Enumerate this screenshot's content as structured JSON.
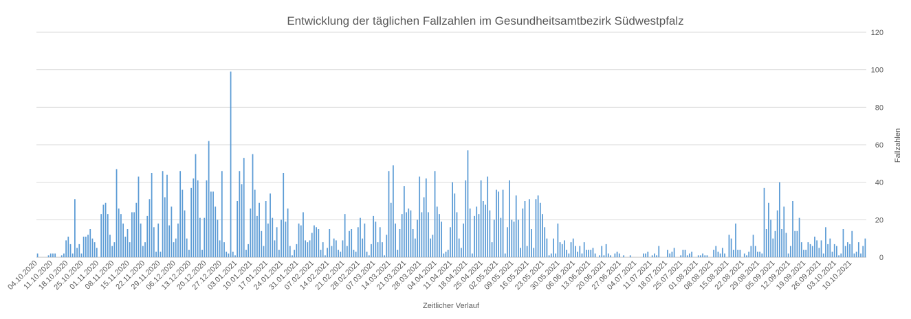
{
  "chart_data": {
    "type": "bar",
    "title": "Entwicklung der täglichen Fallzahlen im Gesundheitsamtbezirk Südwestpfalz",
    "xlabel": "Zeitlicher Verlauf",
    "ylabel": "Fallzahlen",
    "ylim": [
      0,
      120
    ],
    "yticks": [
      0,
      20,
      40,
      60,
      80,
      100,
      120
    ],
    "y_axis_side": "right",
    "grid": true,
    "bar_color": "#5b9bd5",
    "x_tick_labels": [
      "04.10.2020",
      "11.10.2020",
      "18.10.2020",
      "25.10.2020",
      "01.11.2020",
      "08.11.2020",
      "15.11.2020",
      "22.11.2020",
      "29.11.2020",
      "06.12.2020",
      "13.12.2020",
      "20.12.2020",
      "27.12.2020",
      "03.01.2021",
      "10.01.2021",
      "17.01.2021",
      "24.01.2021",
      "31.01.2021",
      "07.02.2021",
      "14.02.2021",
      "21.02.2021",
      "28.02.2021",
      "07.03.2021",
      "14.03.2021",
      "21.03.2021",
      "28.03.2021",
      "04.04.2021",
      "11.04.2021",
      "18.04.2021",
      "25.04.2021",
      "02.05.2021",
      "09.05.2021",
      "16.05.2021",
      "23.05.2021",
      "30.05.2021",
      "06.06.2021",
      "13.06.2021",
      "20.06.2021",
      "27.06.2021",
      "04.07.2021",
      "11.07.2021",
      "18.07.2021",
      "25.07.2021",
      "01.08.2021",
      "08.08.2021",
      "15.08.2021",
      "22.08.2021",
      "29.08.2021",
      "05.09.2021",
      "12.09.2021",
      "19.09.2021",
      "26.09.2021",
      "03.10.2021",
      "10.10.2021"
    ],
    "weekly_values": [
      [
        2,
        0,
        0,
        0,
        0,
        1,
        2
      ],
      [
        2,
        2,
        0,
        0,
        1,
        2,
        9
      ],
      [
        11,
        7,
        2,
        31,
        5,
        7,
        2
      ],
      [
        11,
        11,
        12,
        15,
        10,
        8,
        5
      ],
      [
        0,
        23,
        28,
        29,
        23,
        12,
        6
      ],
      [
        8,
        47,
        26,
        23,
        18,
        11,
        15
      ],
      [
        8,
        24,
        24,
        29,
        43,
        18,
        6
      ],
      [
        8,
        22,
        31,
        45,
        16,
        3,
        18
      ],
      [
        3,
        46,
        32,
        44,
        17,
        27,
        8
      ],
      [
        10,
        18,
        46,
        36,
        25,
        10,
        4
      ],
      [
        37,
        42,
        55,
        41,
        21,
        4,
        21
      ],
      [
        41,
        62,
        35,
        35,
        27,
        20,
        9
      ],
      [
        46,
        8,
        3,
        2,
        99,
        3,
        1
      ],
      [
        30,
        46,
        39,
        53,
        4,
        7,
        26
      ],
      [
        55,
        36,
        22,
        29,
        14,
        6,
        30
      ],
      [
        18,
        34,
        21,
        9,
        16,
        4,
        20
      ],
      [
        45,
        19,
        26,
        6,
        1,
        4,
        7
      ],
      [
        18,
        17,
        24,
        9,
        8,
        9,
        13
      ],
      [
        17,
        16,
        15,
        4,
        8,
        1,
        5
      ],
      [
        15,
        6,
        10,
        9,
        4,
        3,
        9
      ],
      [
        23,
        6,
        14,
        15,
        4,
        3,
        16
      ],
      [
        21,
        10,
        18,
        3,
        1,
        7,
        22
      ],
      [
        19,
        8,
        16,
        8,
        1,
        12,
        46
      ],
      [
        29,
        49,
        18,
        4,
        15,
        23,
        38
      ],
      [
        24,
        26,
        25,
        15,
        10,
        20,
        43
      ],
      [
        24,
        32,
        42,
        24,
        10,
        12,
        46
      ],
      [
        27,
        23,
        19,
        2,
        3,
        4,
        16
      ],
      [
        40,
        34,
        24,
        10,
        5,
        18,
        41
      ],
      [
        57,
        26,
        2,
        22,
        27,
        23,
        41
      ],
      [
        30,
        28,
        43,
        25,
        8,
        20,
        36
      ],
      [
        35,
        21,
        36,
        2,
        16,
        41,
        20
      ],
      [
        19,
        33,
        20,
        5,
        26,
        30,
        6
      ],
      [
        31,
        15,
        5,
        31,
        33,
        29,
        23
      ],
      [
        16,
        10,
        1,
        2,
        10,
        2,
        18
      ],
      [
        8,
        7,
        9,
        4,
        2,
        8,
        10
      ],
      [
        6,
        3,
        6,
        2,
        8,
        4,
        4
      ],
      [
        4,
        5,
        2,
        0,
        1,
        6,
        1
      ],
      [
        7,
        2,
        1,
        0,
        2,
        3,
        2
      ],
      [
        0,
        1,
        0,
        0,
        1,
        0,
        0
      ],
      [
        0,
        0,
        0,
        2,
        2,
        3,
        0
      ],
      [
        1,
        2,
        1,
        6,
        0,
        0,
        0
      ],
      [
        4,
        2,
        3,
        5,
        0,
        0,
        1
      ],
      [
        4,
        4,
        1,
        2,
        3,
        0,
        0
      ],
      [
        1,
        1,
        2,
        1,
        1,
        0,
        0
      ],
      [
        4,
        6,
        3,
        2,
        5,
        2,
        0
      ],
      [
        12,
        10,
        4,
        18,
        4,
        4,
        0
      ],
      [
        2,
        1,
        3,
        6,
        12,
        6,
        3
      ],
      [
        3,
        2,
        37,
        15,
        29,
        20,
        10
      ],
      [
        14,
        25,
        40,
        15,
        27,
        13,
        2
      ],
      [
        6,
        30,
        14,
        14,
        21,
        8,
        4
      ],
      [
        4,
        8,
        7,
        6,
        11,
        9,
        5
      ],
      [
        9,
        2,
        16,
        7,
        10,
        3,
        7
      ],
      [
        6,
        1,
        2,
        15,
        6,
        8,
        7
      ],
      [
        14,
        2,
        3,
        8,
        2,
        6,
        10
      ]
    ]
  }
}
